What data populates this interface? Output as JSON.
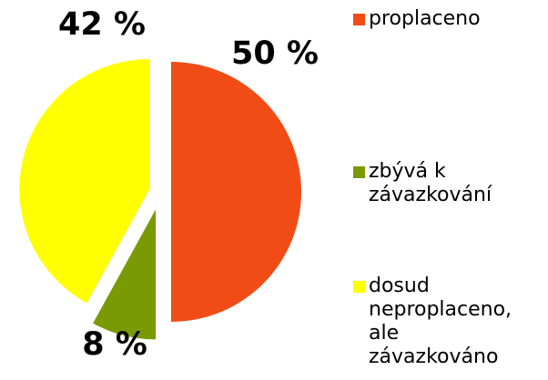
{
  "chart_data": {
    "type": "pie",
    "categories": [
      "proplaceno",
      "zbývá k závazkování",
      "dosud neproplaceno, ale závazkováno"
    ],
    "values": [
      50,
      8,
      42
    ],
    "value_labels": [
      "50 %",
      "8 %",
      "42 %"
    ],
    "colors": [
      "#f24c16",
      "#799a02",
      "#ffff00"
    ],
    "legend": "right"
  }
}
